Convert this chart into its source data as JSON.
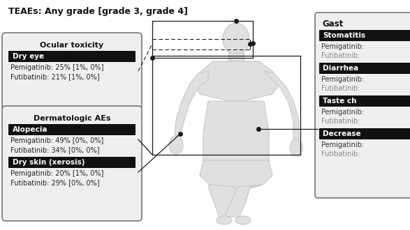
{
  "title": "TEAEs: Any grade [grade 3, grade 4]",
  "background_color": "#ffffff",
  "border_color": "#8888bb",
  "left_panel_title": "Ocular toxicity",
  "left_items": [
    {
      "label": "Dry eye",
      "line1": "Pemigatinib: 25% [1%, 0%]",
      "line2": "Futibatinib: 21% [1%, 0%]"
    }
  ],
  "left_panel2_title": "Dermatologic AEs",
  "left_items2": [
    {
      "label": "Alopecia",
      "line1": "Pemigatinib: 49% [0%, 0%]",
      "line2": "Futibatinib: 34% [0%, 0%]"
    },
    {
      "label": "Dry skin (xerosis)",
      "line1": "Pemigatinib: 20% [1%, 0%]",
      "line2": "Futibatinib: 29% [0%, 0%]"
    }
  ],
  "right_panel_title": "Gast",
  "right_items": [
    {
      "label": "Stomatitis",
      "line1": "Pemigatinib:",
      "line2": "Futibatinib:"
    },
    {
      "label": "Diarrhea",
      "line1": "Pemigatinib:",
      "line2": "Futibatinib:"
    },
    {
      "label": "Taste ch",
      "line1": "Pemigatinib:",
      "line2": "Futibatinib:"
    },
    {
      "label": "Decrease",
      "line1": "Pemigatinib:",
      "line2": "Futibatinib:"
    }
  ],
  "panel_bg": "#efefef",
  "label_bg": "#111111",
  "label_fg": "#ffffff",
  "line_color": "#1a1a1a",
  "body_color": "#e0e0e0",
  "body_outline": "#c8c8c8"
}
